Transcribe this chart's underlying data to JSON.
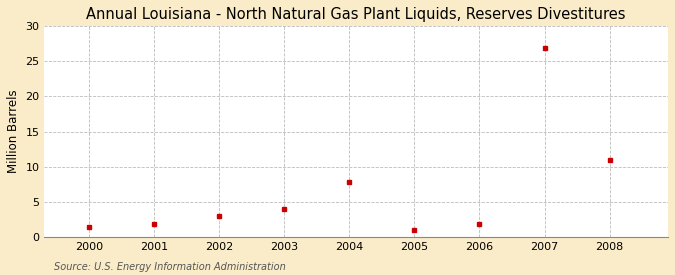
{
  "title": "Annual Louisiana - North Natural Gas Plant Liquids, Reserves Divestitures",
  "ylabel": "Million Barrels",
  "source": "Source: U.S. Energy Information Administration",
  "x": [
    2000,
    2001,
    2002,
    2003,
    2004,
    2005,
    2006,
    2007,
    2008
  ],
  "y": [
    1.5,
    1.9,
    3.0,
    4.0,
    7.9,
    1.0,
    1.9,
    26.8,
    11.0
  ],
  "marker_color": "#cc0000",
  "marker": "s",
  "marker_size": 3.5,
  "xlim": [
    1999.3,
    2008.9
  ],
  "ylim": [
    0,
    30
  ],
  "yticks": [
    0,
    5,
    10,
    15,
    20,
    25,
    30
  ],
  "xticks": [
    2000,
    2001,
    2002,
    2003,
    2004,
    2005,
    2006,
    2007,
    2008
  ],
  "outer_bg": "#faecc8",
  "plot_bg": "#ffffff",
  "grid_color": "#aaaaaa",
  "title_fontsize": 10.5,
  "label_fontsize": 8.5,
  "tick_fontsize": 8,
  "source_fontsize": 7
}
